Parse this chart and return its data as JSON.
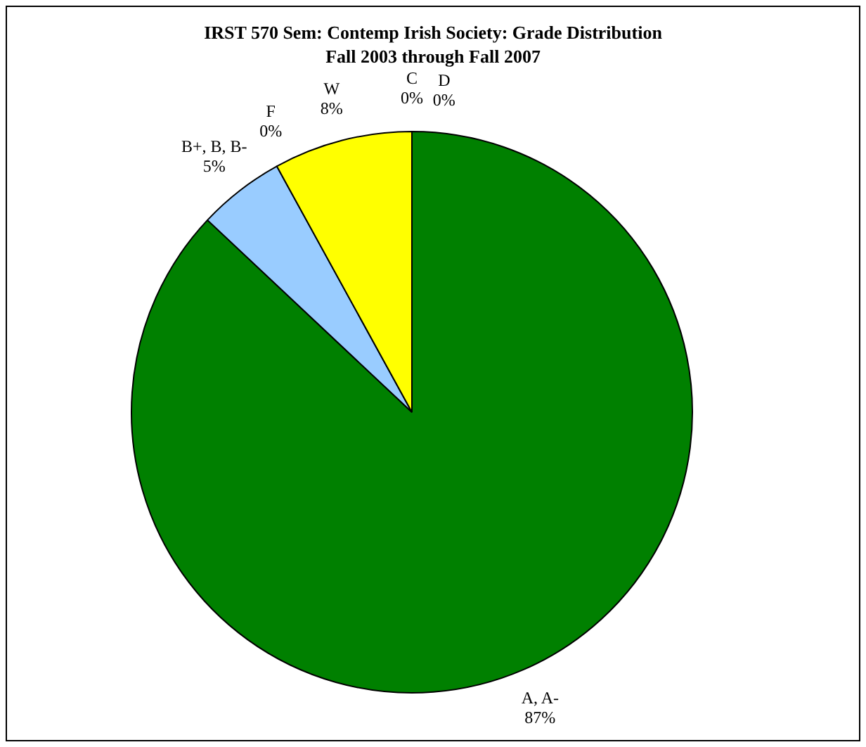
{
  "chart_data": {
    "type": "pie",
    "title": "IRST 570 Sem: Contemp Irish Society: Grade Distribution",
    "subtitle": "Fall 2003 through Fall 2007",
    "categories": [
      "A, A-",
      "B+, B, B-",
      "F",
      "W",
      "C",
      "D"
    ],
    "values": [
      87,
      5,
      0,
      8,
      0,
      0
    ],
    "value_labels": [
      "87%",
      "5%",
      "0%",
      "8%",
      "0%",
      "0%"
    ],
    "colors": [
      "#008000",
      "#99ccff",
      "#ff0000",
      "#ffff00",
      "#ff9900",
      "#800080"
    ],
    "legend": false
  }
}
